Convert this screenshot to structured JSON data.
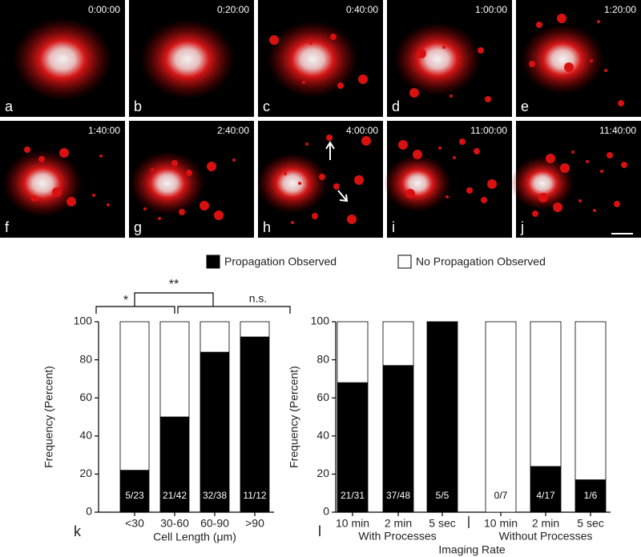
{
  "panels": [
    {
      "label": "a",
      "time": "0:00:00"
    },
    {
      "label": "b",
      "time": "0:20:00"
    },
    {
      "label": "c",
      "time": "0:40:00"
    },
    {
      "label": "d",
      "time": "1:00:00"
    },
    {
      "label": "e",
      "time": "1:20:00"
    },
    {
      "label": "f",
      "time": "1:40:00"
    },
    {
      "label": "g",
      "time": "2:40:00"
    },
    {
      "label": "h",
      "time": "4:00:00"
    },
    {
      "label": "i",
      "time": "11:00:00"
    },
    {
      "label": "j",
      "time": "11:40:00"
    }
  ],
  "chart_data": [
    {
      "type": "bar",
      "stacked": true,
      "panel_label": "k",
      "xlabel": "Cell Length (μm)",
      "ylabel": "Frequency (Percent)",
      "categories": [
        "<30",
        "30-60",
        "60-90",
        ">90"
      ],
      "series": [
        {
          "name": "Propagation Observed",
          "color": "#000000",
          "values": [
            22,
            50,
            84,
            92
          ]
        },
        {
          "name": "No Propagation Observed",
          "color": "#ffffff",
          "values": [
            78,
            50,
            16,
            8
          ]
        }
      ],
      "bar_labels": [
        "5/23",
        "21/42",
        "32/38",
        "11/12"
      ],
      "annotations": [
        "*",
        "**",
        "n.s."
      ],
      "ylim": [
        0,
        100
      ],
      "yticks": [
        0,
        20,
        40,
        60,
        80,
        100
      ]
    },
    {
      "type": "bar",
      "stacked": true,
      "panel_label": "l",
      "xlabel": "Imaging Rate",
      "ylabel": "Frequency (Percent)",
      "categories": [
        "10 min",
        "2 min",
        "5 sec",
        "10 min",
        "2 min",
        "5 sec"
      ],
      "groups": [
        "With Processes",
        "Without Processes"
      ],
      "series": [
        {
          "color": "#000000",
          "values": [
            68,
            77,
            100,
            0,
            24,
            17
          ]
        },
        {
          "color": "#ffffff",
          "values": [
            32,
            23,
            0,
            100,
            76,
            83
          ]
        }
      ],
      "bar_labels": [
        "21/31",
        "37/48",
        "5/5",
        "0/7",
        "4/17",
        "1/6"
      ],
      "ylim": [
        0,
        100
      ],
      "yticks": [
        0,
        20,
        40,
        60,
        80,
        100
      ]
    }
  ]
}
